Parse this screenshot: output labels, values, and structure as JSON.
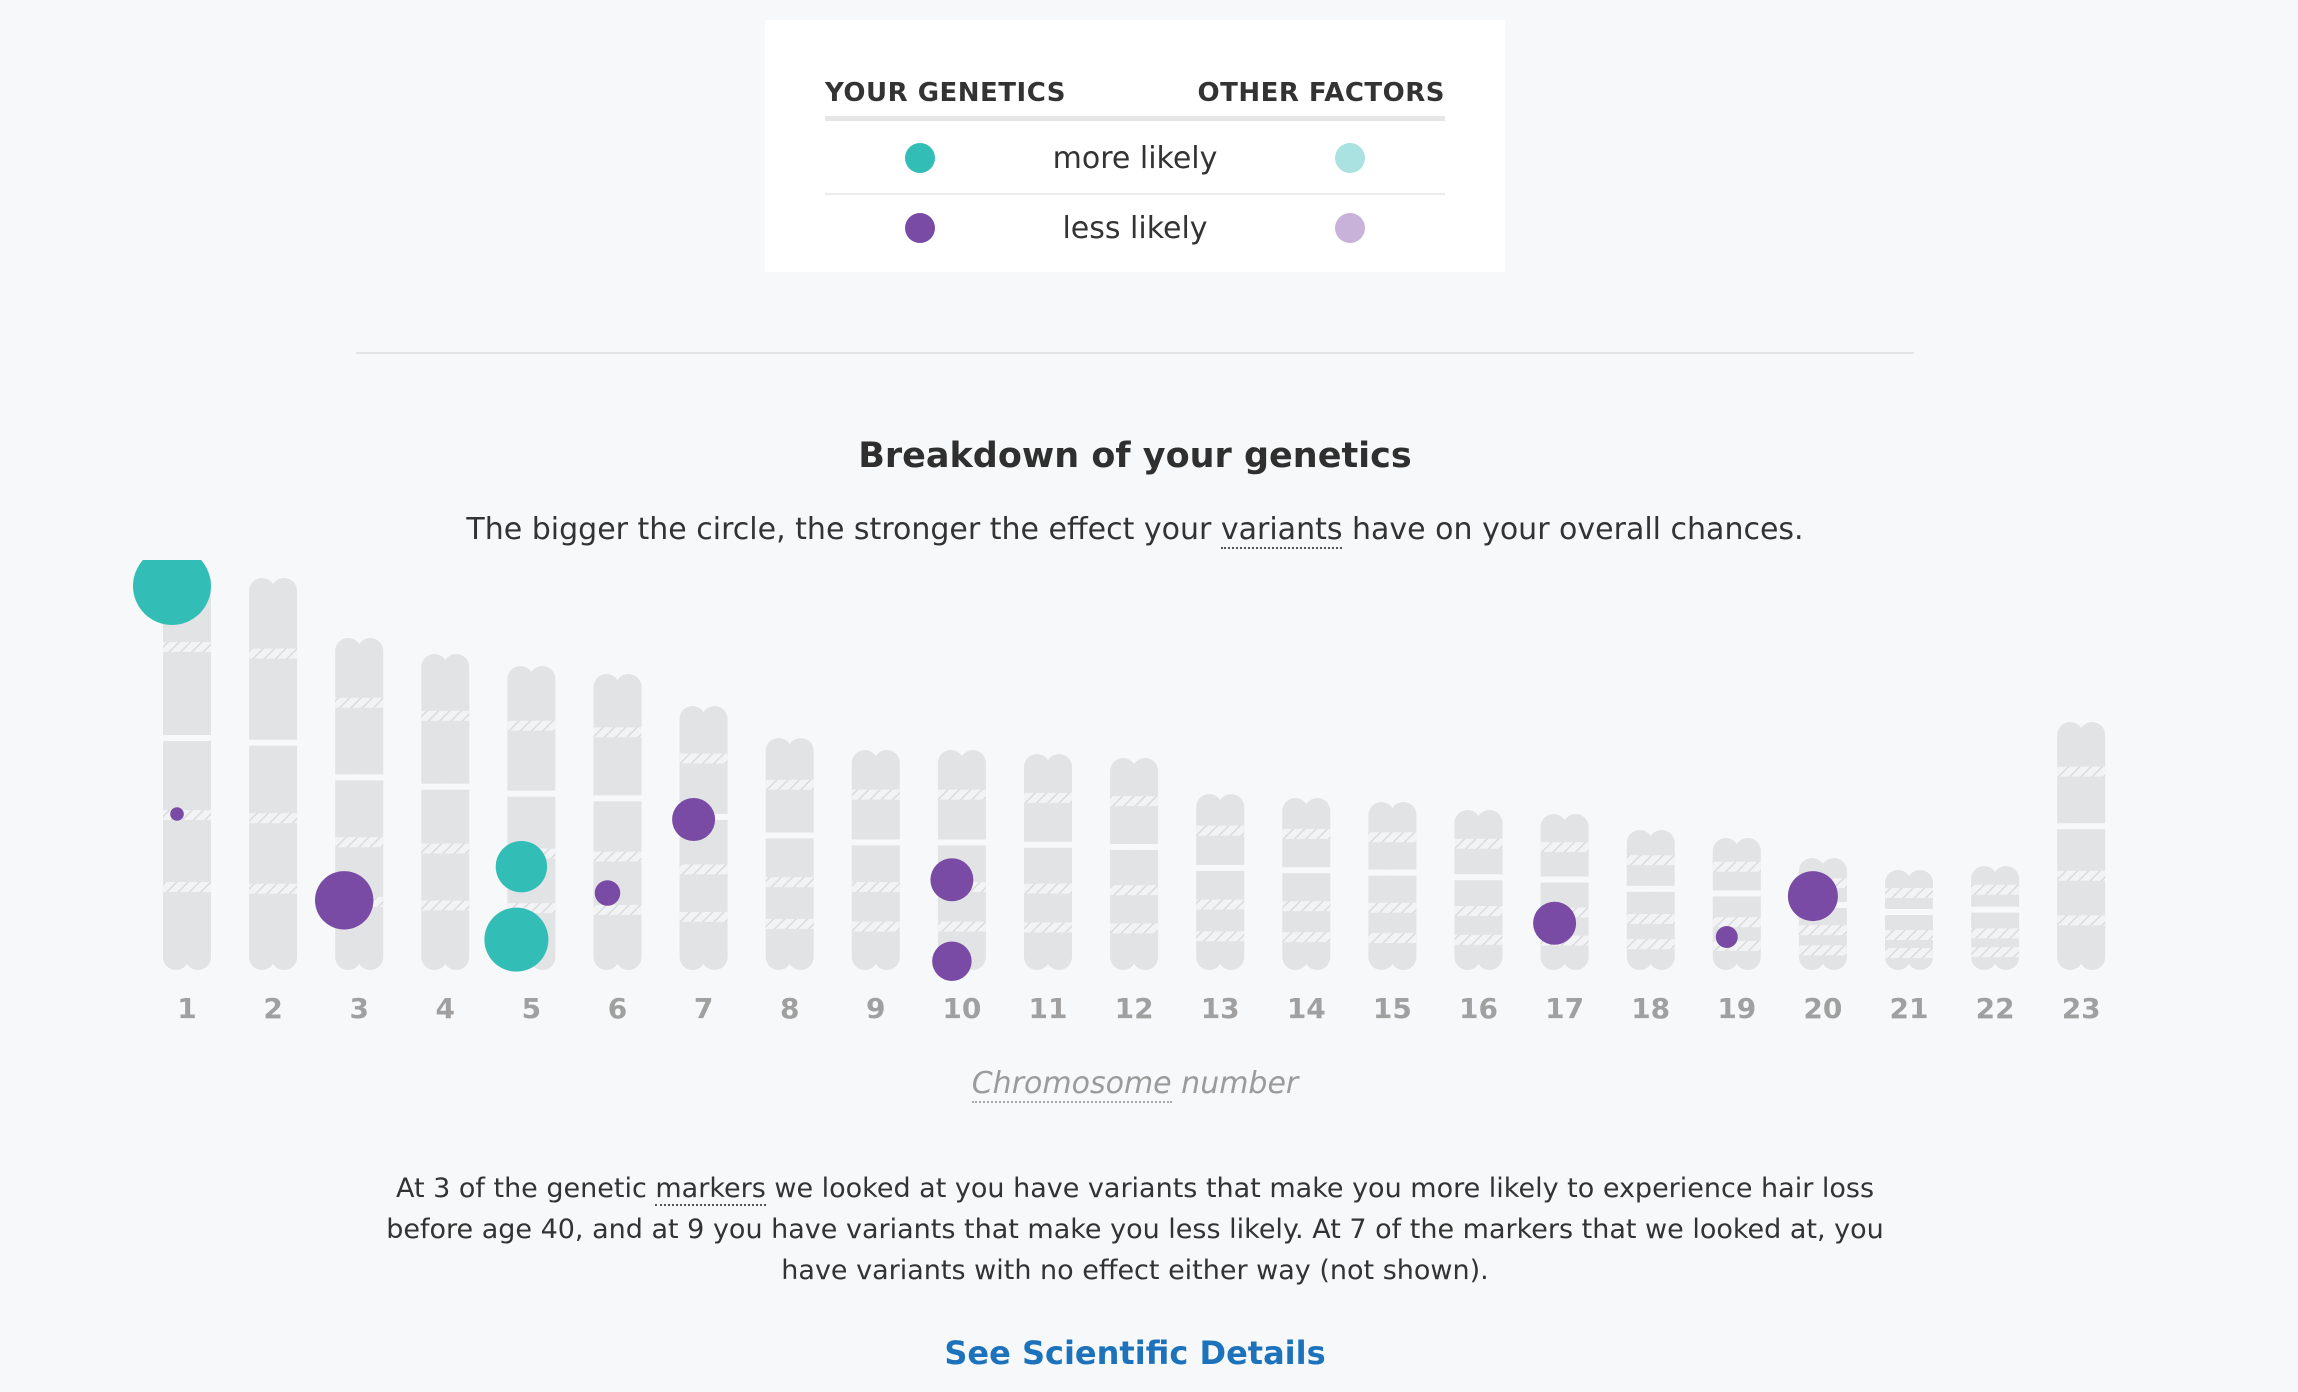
{
  "legend": {
    "header_left": "YOUR GENETICS",
    "header_right": "OTHER FACTORS",
    "rows": [
      {
        "label": "more likely",
        "genetics_color": "#33bdb7",
        "other_color": "#a9e2e0"
      },
      {
        "label": "less likely",
        "genetics_color": "#7a4ba4",
        "other_color": "#c9b2da"
      }
    ]
  },
  "breakdown": {
    "title": "Breakdown of your genetics",
    "subtitle_before": "The bigger the circle, the stronger the effect your ",
    "subtitle_link": "variants",
    "subtitle_after": " have on your overall chances."
  },
  "chart_data": {
    "type": "scatter",
    "categories": [
      "1",
      "2",
      "3",
      "4",
      "5",
      "6",
      "7",
      "8",
      "9",
      "10",
      "11",
      "12",
      "13",
      "14",
      "15",
      "16",
      "17",
      "18",
      "19",
      "20",
      "21",
      "22",
      "23"
    ],
    "xlabel_word": "Chromosome",
    "xlabel_rest": " number",
    "colors": {
      "more": "#33bdb7",
      "less": "#7a4ba4",
      "chromosome": "#e2e3e4"
    },
    "chromosome_relative_length": [
      1.0,
      0.98,
      0.83,
      0.79,
      0.76,
      0.74,
      0.66,
      0.58,
      0.55,
      0.55,
      0.54,
      0.53,
      0.44,
      0.43,
      0.42,
      0.4,
      0.39,
      0.35,
      0.33,
      0.28,
      0.25,
      0.26,
      0.62
    ],
    "markers": [
      {
        "chromosome": 1,
        "effect": "more",
        "strength": 1.0,
        "position": 0.04
      },
      {
        "chromosome": 1,
        "effect": "less",
        "strength": 0.08,
        "position": 0.61
      },
      {
        "chromosome": 3,
        "effect": "less",
        "strength": 0.72,
        "position": 0.79
      },
      {
        "chromosome": 5,
        "effect": "more",
        "strength": 0.62,
        "position": 0.66
      },
      {
        "chromosome": 5,
        "effect": "more",
        "strength": 0.8,
        "position": 0.9
      },
      {
        "chromosome": 6,
        "effect": "less",
        "strength": 0.25,
        "position": 0.74
      },
      {
        "chromosome": 7,
        "effect": "less",
        "strength": 0.5,
        "position": 0.43
      },
      {
        "chromosome": 10,
        "effect": "less",
        "strength": 0.5,
        "position": 0.59
      },
      {
        "chromosome": 10,
        "effect": "less",
        "strength": 0.45,
        "position": 0.96
      },
      {
        "chromosome": 17,
        "effect": "less",
        "strength": 0.5,
        "position": 0.7
      },
      {
        "chromosome": 19,
        "effect": "less",
        "strength": 0.2,
        "position": 0.75
      },
      {
        "chromosome": 20,
        "effect": "less",
        "strength": 0.6,
        "position": 0.34
      }
    ]
  },
  "summary": {
    "part1": "At 3 of the genetic ",
    "link": "markers",
    "part2": " we looked at you have variants that make you more likely to experience hair loss before age 40, and at 9 you have variants that make you less likely. At 7 of the markers that we looked at, you have variants with no effect either way (not shown)."
  },
  "details_link": "See Scientific Details"
}
